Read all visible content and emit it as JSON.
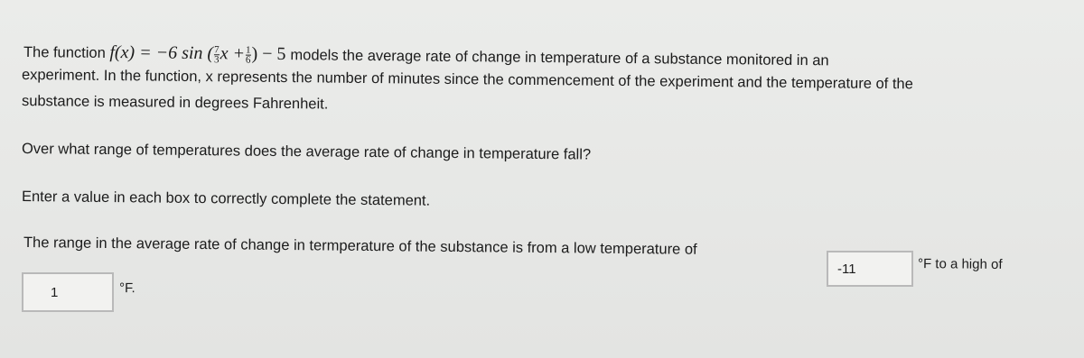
{
  "paragraph": {
    "lead": "The function",
    "formula": {
      "head": "f(x) = −6 sin (",
      "frac1": {
        "num": "7",
        "den": "3"
      },
      "var": "x +",
      "frac2": {
        "num": "1",
        "den": "6"
      },
      "tail": ") − 5"
    },
    "lines": [
      "models the average rate of change in temperature of a substance monitored in an",
      "experiment. In the function, x represents the number of minutes since the commencement of the experiment and the temperature of the",
      "substance is measured in degrees Fahrenheit."
    ]
  },
  "question": "Over what range of temperatures does the average rate of change in temperature fall?",
  "instruction": "Enter a value in each box to correctly complete the statement.",
  "statement": {
    "part1": "The range in the average rate of change in termperature of the substance is from a low temperature of",
    "box1": "-11",
    "part2": "°F to a high of",
    "box2": "1",
    "part3": "°F."
  }
}
